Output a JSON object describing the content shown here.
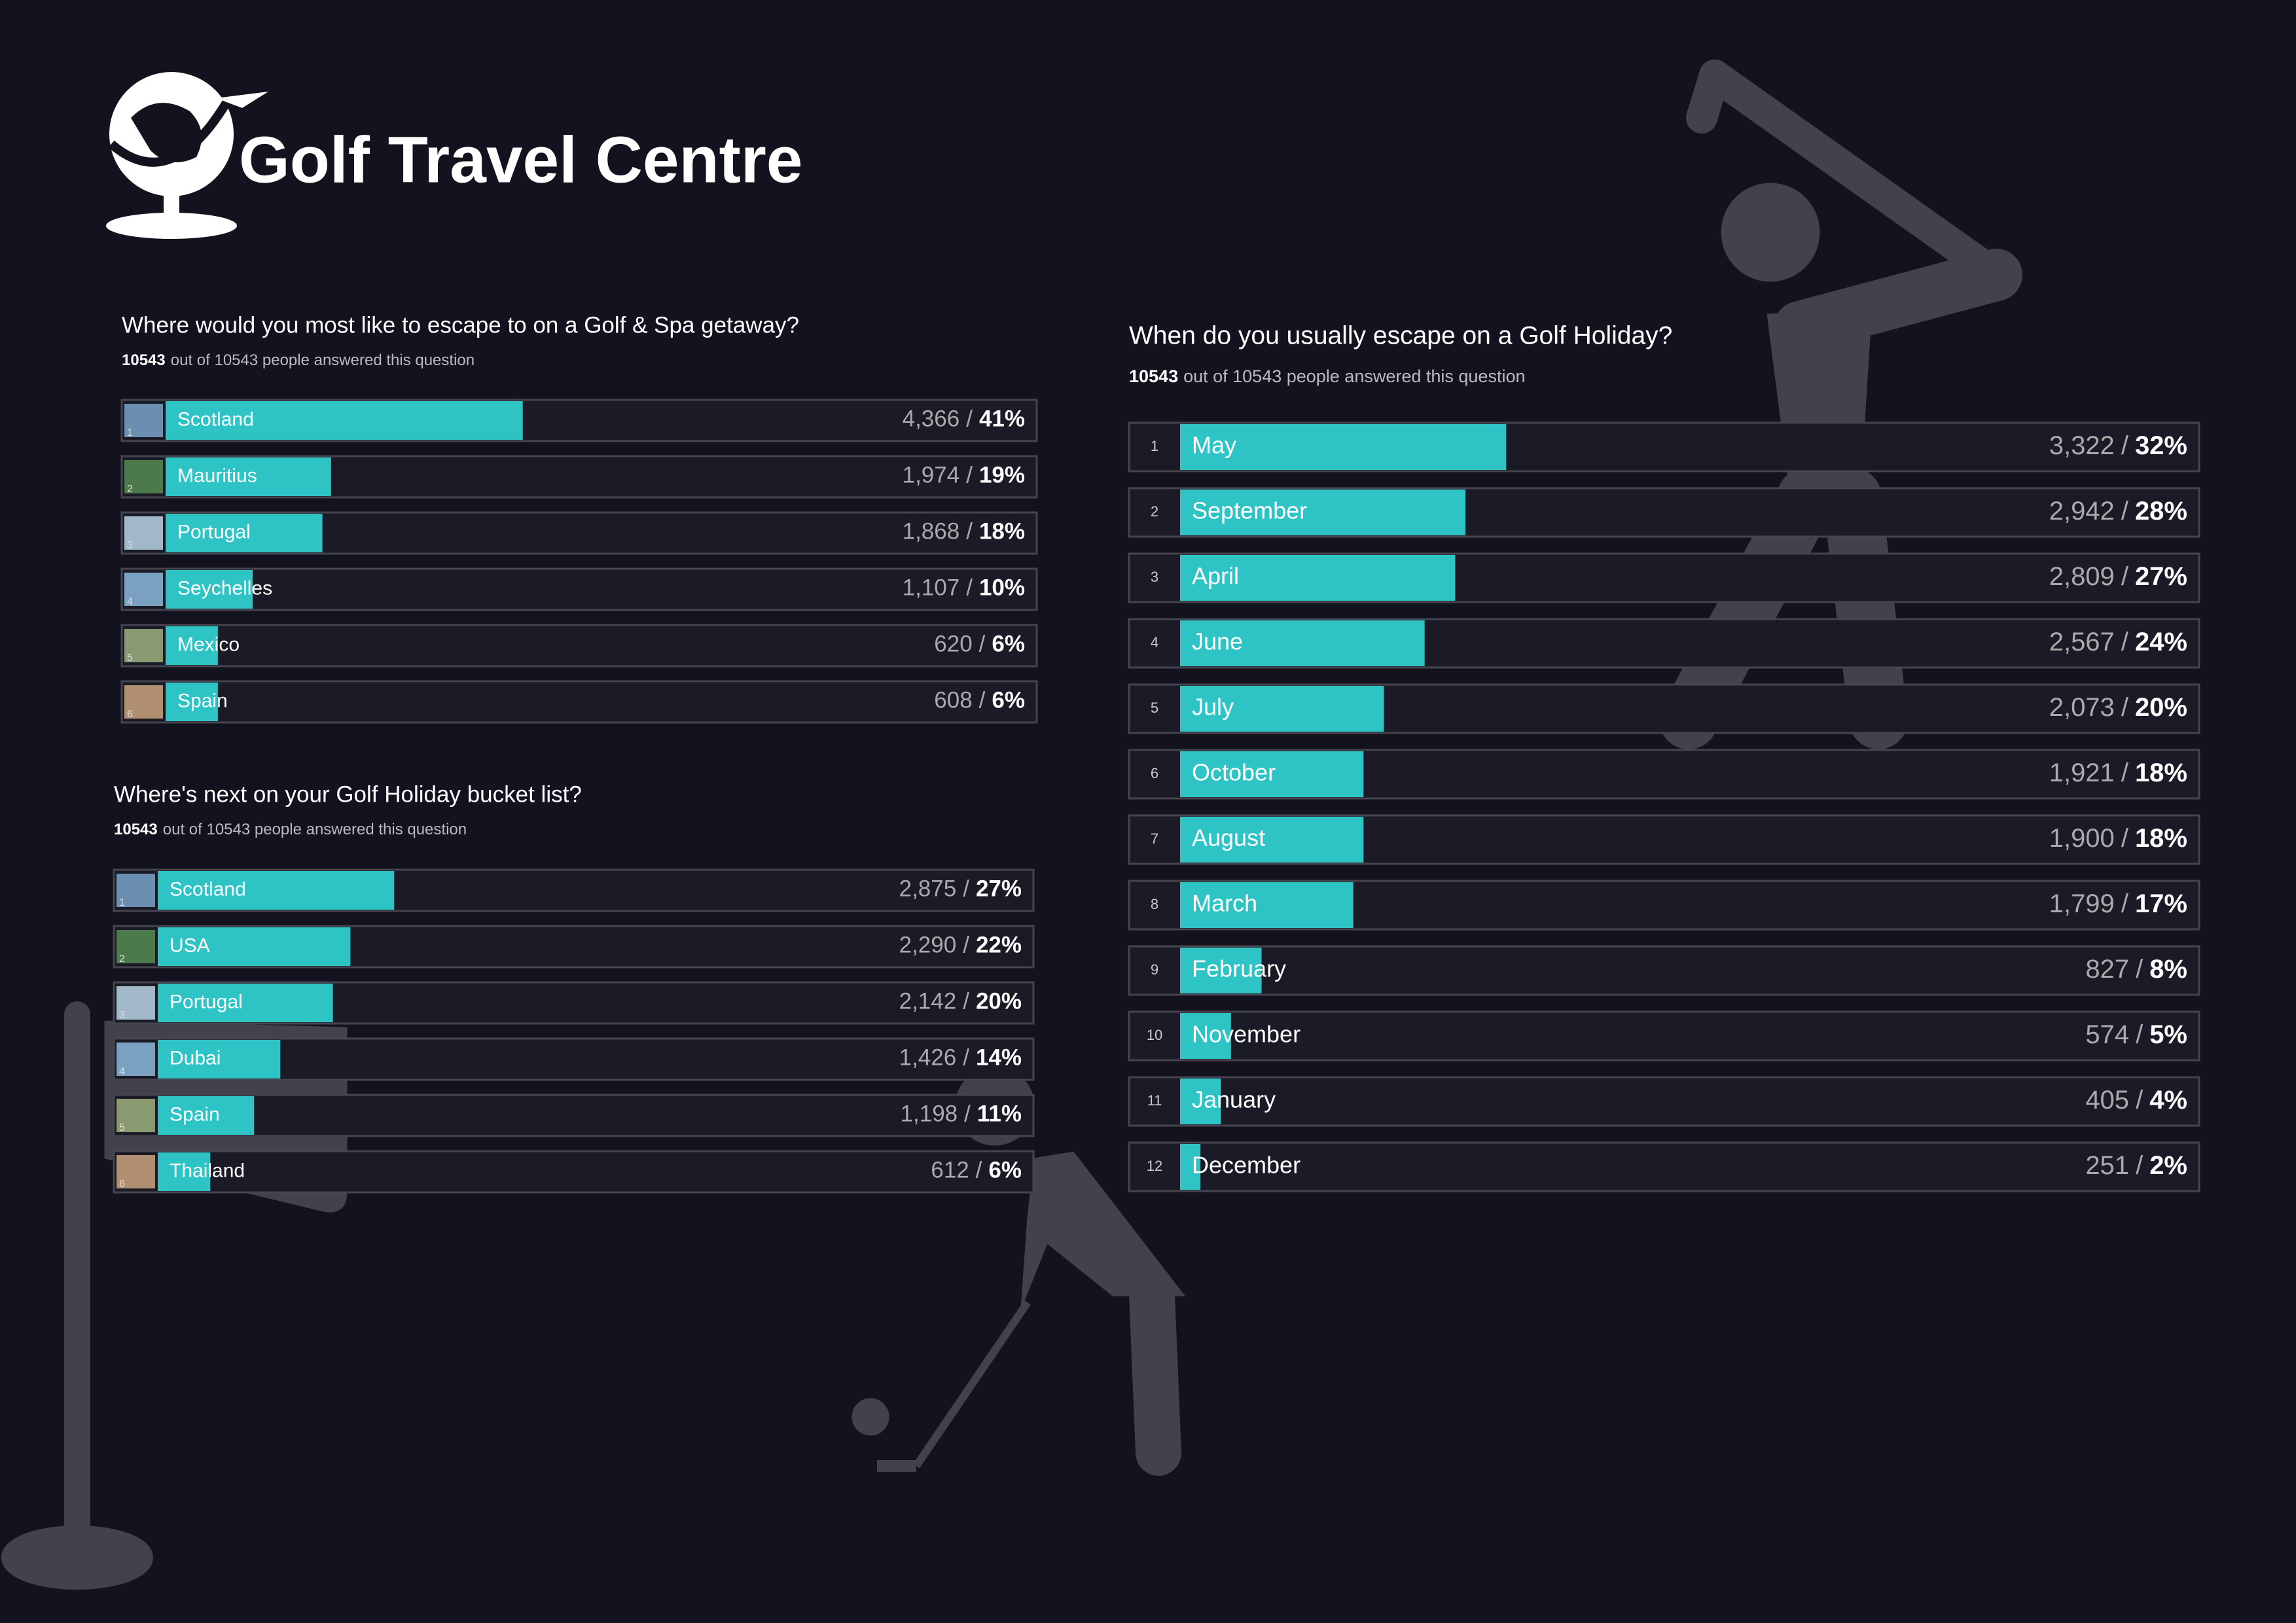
{
  "logo": "Golf Travel Centre",
  "separator": "/",
  "chart_data": [
    {
      "type": "hbar",
      "title": "Where would you most like to escape to on a Golf & Spa getaway?",
      "answered": "10543",
      "subtitle": "out of 10543 people answered this question",
      "ranks": [
        1,
        2,
        3,
        4,
        5,
        6
      ],
      "categories": [
        "Scotland",
        "Mauritius",
        "Portugal",
        "Seychelles",
        "Mexico",
        "Spain"
      ],
      "counts": [
        "4,366",
        "1,974",
        "1,868",
        "1,107",
        "620",
        "608"
      ],
      "values": [
        41,
        19,
        18,
        10,
        6,
        6
      ],
      "value_labels": [
        "41%",
        "19%",
        "18%",
        "10%",
        "6%",
        "6%"
      ],
      "xlim": [
        0,
        100
      ],
      "color": "#2ec4c6"
    },
    {
      "type": "hbar",
      "title": "Where's next on your Golf Holiday bucket list?",
      "answered": "10543",
      "subtitle": "out of 10543 people answered this question",
      "ranks": [
        1,
        2,
        3,
        4,
        5,
        6
      ],
      "categories": [
        "Scotland",
        "USA",
        "Portugal",
        "Dubai",
        "Spain",
        "Thailand"
      ],
      "counts": [
        "2,875",
        "2,290",
        "2,142",
        "1,426",
        "1,198",
        "612"
      ],
      "values": [
        27,
        22,
        20,
        14,
        11,
        6
      ],
      "value_labels": [
        "27%",
        "22%",
        "20%",
        "14%",
        "11%",
        "6%"
      ],
      "xlim": [
        0,
        100
      ],
      "color": "#2ec4c6"
    },
    {
      "type": "hbar",
      "title": "When do you usually escape on a Golf Holiday?",
      "answered": "10543",
      "subtitle": "out of 10543 people answered this question",
      "ranks": [
        1,
        2,
        3,
        4,
        5,
        6,
        7,
        8,
        9,
        10,
        11,
        12
      ],
      "categories": [
        "May",
        "September",
        "April",
        "June",
        "July",
        "October",
        "August",
        "March",
        "February",
        "November",
        "January",
        "December"
      ],
      "counts": [
        "3,322",
        "2,942",
        "2,809",
        "2,567",
        "2,073",
        "1,921",
        "1,900",
        "1,799",
        "827",
        "574",
        "405",
        "251"
      ],
      "values": [
        32,
        28,
        27,
        24,
        20,
        18,
        18,
        17,
        8,
        5,
        4,
        2
      ],
      "value_labels": [
        "32%",
        "28%",
        "27%",
        "24%",
        "20%",
        "18%",
        "18%",
        "17%",
        "8%",
        "5%",
        "4%",
        "2%"
      ],
      "xlim": [
        0,
        100
      ],
      "color": "#2ec4c6"
    }
  ]
}
